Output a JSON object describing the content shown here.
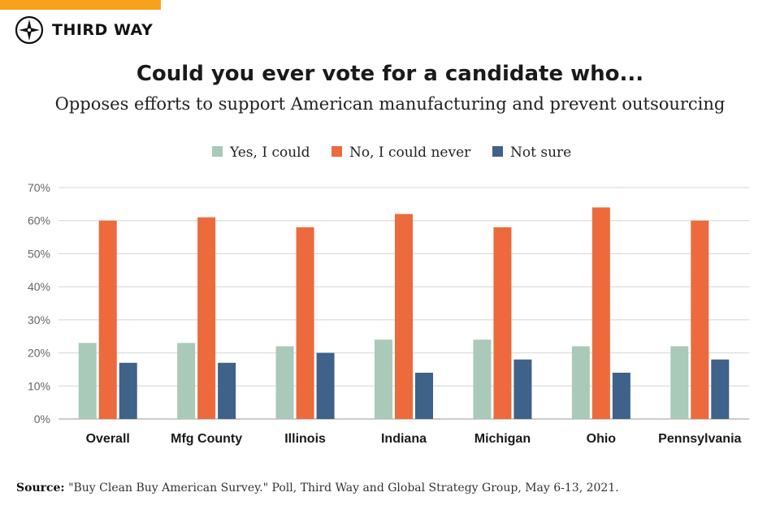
{
  "brand": {
    "name": "THIRD WAY",
    "accent": "#f7a21b"
  },
  "header": {
    "title": "Could you ever vote for a candidate who...",
    "subtitle": "Opposes efforts to support American manufacturing and prevent outsourcing"
  },
  "chart_data": {
    "type": "bar",
    "categories": [
      "Overall",
      "Mfg County",
      "Illinois",
      "Indiana",
      "Michigan",
      "Ohio",
      "Pennsylvania"
    ],
    "series": [
      {
        "name": "Yes, I could",
        "color": "#a9c9b9",
        "values": [
          23,
          23,
          22,
          24,
          24,
          22,
          22
        ]
      },
      {
        "name": "No, I could never",
        "color": "#ec6a3c",
        "values": [
          60,
          61,
          58,
          62,
          58,
          64,
          60
        ]
      },
      {
        "name": "Not sure",
        "color": "#3e6289",
        "values": [
          17,
          17,
          20,
          14,
          18,
          14,
          18
        ]
      }
    ],
    "yticks": [
      "0%",
      "10%",
      "20%",
      "30%",
      "40%",
      "50%",
      "60%",
      "70%"
    ],
    "ylim": [
      0,
      70
    ],
    "grid": true,
    "legend_position": "top-center"
  },
  "source": {
    "label": "Source:",
    "text": "\"Buy Clean Buy American Survey.\" Poll, Third Way and Global Strategy Group, May 6-13, 2021."
  }
}
